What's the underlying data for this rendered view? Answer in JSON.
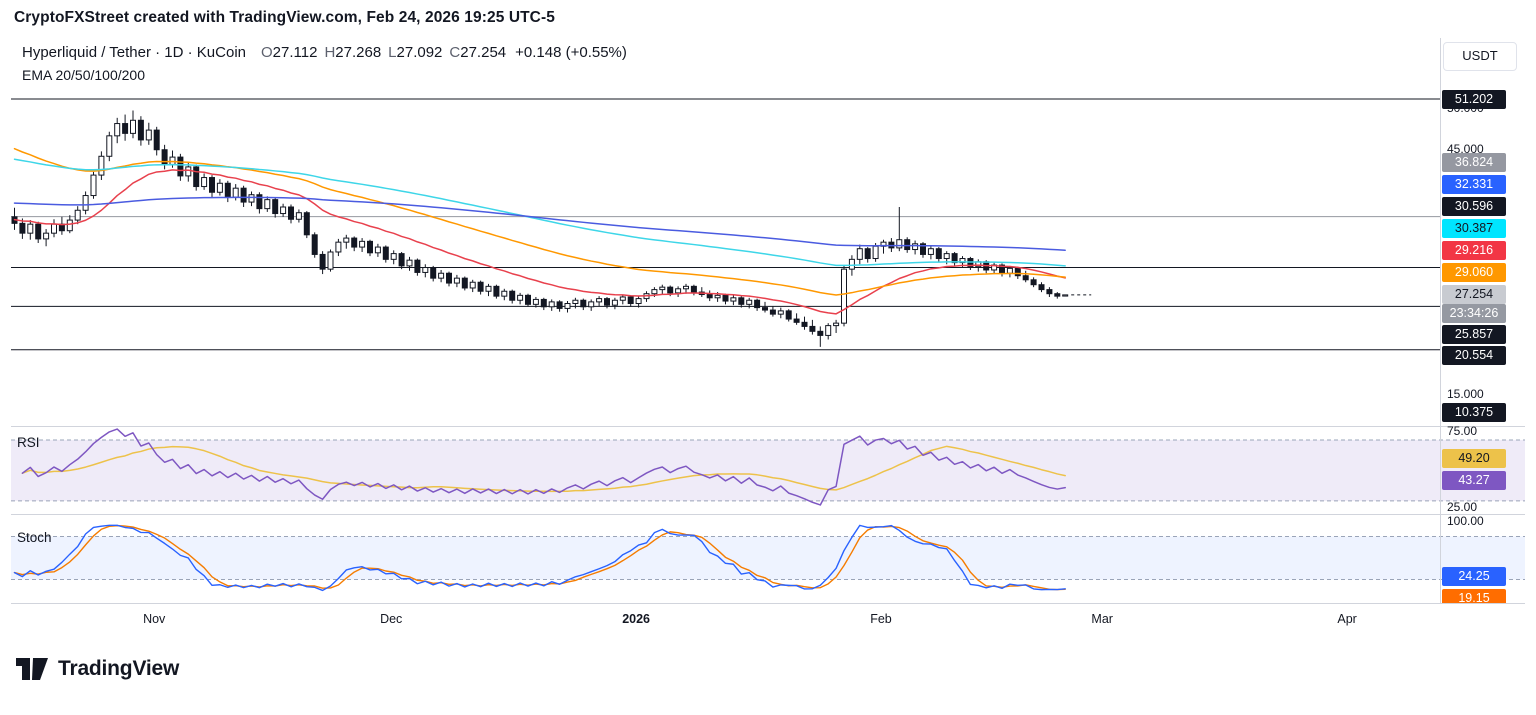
{
  "header": {
    "text": "CryptoFXStreet created with TradingView.com, Feb 24, 2026 19:25 UTC-5"
  },
  "legend": {
    "title": "Hyperliquid / Tether · 1D · KuCoin",
    "ohlc": {
      "o_label": "O",
      "o_value": "27.112",
      "h_label": "H",
      "h_value": "27.268",
      "l_label": "L",
      "l_value": "27.092",
      "c_label": "C",
      "c_value": "27.254",
      "change": "+0.148 (+0.55%)"
    },
    "indicator": "EMA 20/50/100/200"
  },
  "axis": {
    "currency": "USDT",
    "price_ticks": [
      {
        "text": "50.000",
        "value": 50
      },
      {
        "text": "45.000",
        "value": 45
      },
      {
        "text": "15.000",
        "value": 15
      }
    ],
    "price_badges": [
      {
        "text": "51.202",
        "value": 51.202,
        "bg": "#131722",
        "fg": "#ffffff"
      },
      {
        "text": "36.824",
        "value": 36.824,
        "bg": "#9598a1",
        "fg": "#ffffff"
      },
      {
        "text": "32.331",
        "value": 32.331,
        "bg": "#2962ff",
        "fg": "#ffffff"
      },
      {
        "text": "30.596",
        "value": 30.596,
        "bg": "#131722",
        "fg": "#ffffff"
      },
      {
        "text": "30.387",
        "value": 30.387,
        "bg": "#00e5ff",
        "fg": "#131722"
      },
      {
        "text": "29.216",
        "value": 29.216,
        "bg": "#f23645",
        "fg": "#ffffff"
      },
      {
        "text": "29.060",
        "value": 29.06,
        "bg": "#ff9800",
        "fg": "#ffffff"
      },
      {
        "text": "27.254",
        "value": 27.254,
        "bg": "#c8cbd1",
        "fg": "#131722",
        "countdown": "23:34:26",
        "countdown_bg": "#9599a2",
        "countdown_fg": "#ffffff"
      },
      {
        "text": "25.857",
        "value": 25.857,
        "bg": "#131722",
        "fg": "#ffffff"
      },
      {
        "text": "20.554",
        "value": 20.554,
        "bg": "#131722",
        "fg": "#ffffff"
      },
      {
        "text": "10.375",
        "value": 10.375,
        "bg": "#131722",
        "fg": "#ffffff",
        "clamp": "bottom"
      }
    ],
    "rsi_ticks": [
      {
        "text": "75.00",
        "value": 75
      },
      {
        "text": "25.00",
        "value": 25
      }
    ],
    "rsi_badges": [
      {
        "text": "49.20",
        "value": 49.2,
        "bg": "#edc24a",
        "fg": "#131722"
      },
      {
        "text": "43.27",
        "value": 43.27,
        "bg": "#7e57c2",
        "fg": "#ffffff"
      }
    ],
    "stoch_ticks": [
      {
        "text": "100.00",
        "value": 100
      }
    ],
    "stoch_badges": [
      {
        "text": "24.25",
        "value": 24.25,
        "bg": "#2962ff",
        "fg": "#ffffff"
      },
      {
        "text": "19.15",
        "value": 19.15,
        "bg": "#ff6d00",
        "fg": "#ffffff"
      }
    ]
  },
  "chart_data": {
    "type": "candlestick",
    "symbol": "Hyperliquid / Tether",
    "interval": "1D",
    "exchange": "KuCoin",
    "last_bar": {
      "open": 27.112,
      "high": 27.268,
      "low": 27.092,
      "close": 27.254,
      "change": "+0.148",
      "change_pct": "+0.55%"
    },
    "price_line": {
      "value": 27.254,
      "countdown": "23:34:26"
    },
    "ylim_visible": [
      11.5,
      52.6
    ],
    "levels": [
      {
        "value": 51.202,
        "color": "#131722"
      },
      {
        "value": 36.824,
        "color": "#9598a1"
      },
      {
        "value": 30.596,
        "color": "#131722"
      },
      {
        "value": 25.857,
        "color": "#131722"
      },
      {
        "value": 20.554,
        "color": "#131722"
      },
      {
        "value": 10.375,
        "color": "#131722"
      }
    ],
    "emas": [
      {
        "period": 20,
        "color": "#e8414d",
        "seed": 36.5,
        "last": 29.216
      },
      {
        "period": 50,
        "color": "#ff9800",
        "seed": 45.5,
        "last": 29.06
      },
      {
        "period": 100,
        "color": "#3ed6e8",
        "seed": 44.0,
        "last": 30.387
      },
      {
        "period": 200,
        "color": "#4a5be0",
        "seed": 38.5,
        "last": 32.331
      }
    ],
    "rsi": {
      "label": "RSI",
      "period": 14,
      "upper_band": 70,
      "lower_band": 30,
      "line_color": "#7e57c2",
      "ma_color": "#edc24a",
      "last": 43.27,
      "ma_last": 49.2
    },
    "stoch": {
      "label": "Stoch",
      "upper_band": 80,
      "lower_band": 20,
      "k_color": "#2962ff",
      "d_color": "#f57c00",
      "k_last": 24.25,
      "d_last": 19.15
    },
    "time_axis": [
      {
        "text": "Nov",
        "day": 18
      },
      {
        "text": "Dec",
        "day": 48
      },
      {
        "text": "2026",
        "day": 79,
        "bold": true
      },
      {
        "text": "Feb",
        "day": 110
      },
      {
        "text": "Mar",
        "day": 138
      },
      {
        "text": "Apr",
        "day": 169
      }
    ],
    "candles": [
      [
        36.8,
        37.9,
        35.2,
        36.0
      ],
      [
        36.0,
        36.6,
        34.1,
        34.8
      ],
      [
        34.8,
        36.4,
        34.0,
        35.9
      ],
      [
        35.9,
        36.2,
        33.6,
        34.1
      ],
      [
        34.1,
        35.3,
        33.2,
        34.8
      ],
      [
        34.8,
        36.5,
        34.3,
        35.9
      ],
      [
        35.9,
        36.8,
        34.6,
        35.1
      ],
      [
        35.1,
        37.0,
        34.8,
        36.4
      ],
      [
        36.4,
        38.1,
        35.9,
        37.6
      ],
      [
        37.6,
        39.9,
        37.1,
        39.4
      ],
      [
        39.4,
        42.3,
        39.0,
        41.9
      ],
      [
        41.9,
        44.8,
        41.3,
        44.2
      ],
      [
        44.2,
        47.2,
        43.6,
        46.7
      ],
      [
        46.7,
        48.9,
        45.8,
        48.2
      ],
      [
        48.2,
        49.3,
        46.1,
        47.0
      ],
      [
        47.0,
        49.8,
        46.4,
        48.6
      ],
      [
        48.6,
        49.1,
        45.5,
        46.2
      ],
      [
        46.2,
        48.3,
        45.6,
        47.4
      ],
      [
        47.4,
        47.8,
        44.3,
        45.0
      ],
      [
        45.0,
        45.6,
        42.6,
        43.2
      ],
      [
        43.2,
        44.9,
        42.8,
        44.1
      ],
      [
        44.1,
        44.5,
        41.2,
        41.8
      ],
      [
        41.8,
        43.4,
        41.1,
        42.9
      ],
      [
        42.9,
        43.2,
        40.0,
        40.5
      ],
      [
        40.5,
        42.1,
        40.1,
        41.6
      ],
      [
        41.6,
        41.9,
        39.2,
        39.8
      ],
      [
        39.8,
        41.4,
        39.4,
        40.9
      ],
      [
        40.9,
        41.2,
        38.6,
        39.2
      ],
      [
        39.2,
        40.8,
        38.8,
        40.3
      ],
      [
        40.3,
        40.6,
        38.0,
        38.6
      ],
      [
        38.6,
        39.9,
        38.1,
        39.5
      ],
      [
        39.5,
        39.8,
        37.2,
        37.8
      ],
      [
        37.8,
        39.3,
        37.4,
        38.9
      ],
      [
        38.9,
        39.1,
        36.7,
        37.2
      ],
      [
        37.2,
        38.4,
        36.8,
        38.0
      ],
      [
        38.0,
        38.3,
        36.0,
        36.5
      ],
      [
        36.5,
        37.7,
        36.1,
        37.3
      ],
      [
        37.3,
        37.5,
        34.2,
        34.6
      ],
      [
        34.6,
        34.9,
        31.8,
        32.2
      ],
      [
        32.2,
        32.6,
        29.8,
        30.4
      ],
      [
        30.4,
        32.8,
        30.1,
        32.5
      ],
      [
        32.5,
        34.1,
        32.0,
        33.7
      ],
      [
        33.7,
        34.6,
        32.9,
        34.2
      ],
      [
        34.2,
        34.4,
        32.6,
        33.1
      ],
      [
        33.1,
        34.2,
        32.5,
        33.8
      ],
      [
        33.8,
        34.0,
        32.0,
        32.4
      ],
      [
        32.4,
        33.5,
        31.9,
        33.1
      ],
      [
        33.1,
        33.3,
        31.2,
        31.6
      ],
      [
        31.6,
        32.7,
        31.0,
        32.3
      ],
      [
        32.3,
        32.5,
        30.4,
        30.8
      ],
      [
        30.8,
        31.9,
        30.2,
        31.5
      ],
      [
        31.5,
        31.7,
        29.6,
        30.0
      ],
      [
        30.0,
        31.0,
        29.4,
        30.6
      ],
      [
        30.6,
        30.8,
        28.9,
        29.3
      ],
      [
        29.3,
        30.3,
        28.8,
        29.9
      ],
      [
        29.9,
        30.1,
        28.3,
        28.7
      ],
      [
        28.7,
        29.7,
        28.2,
        29.3
      ],
      [
        29.3,
        29.5,
        27.8,
        28.1
      ],
      [
        28.1,
        29.1,
        27.6,
        28.8
      ],
      [
        28.8,
        29.0,
        27.3,
        27.7
      ],
      [
        27.7,
        28.6,
        27.1,
        28.3
      ],
      [
        28.3,
        28.5,
        26.8,
        27.1
      ],
      [
        27.1,
        28.0,
        26.6,
        27.7
      ],
      [
        27.7,
        27.9,
        26.2,
        26.6
      ],
      [
        26.6,
        27.5,
        26.1,
        27.2
      ],
      [
        27.2,
        27.4,
        25.8,
        26.1
      ],
      [
        26.1,
        27.0,
        25.7,
        26.7
      ],
      [
        26.7,
        26.9,
        25.4,
        25.8
      ],
      [
        25.8,
        26.7,
        25.3,
        26.4
      ],
      [
        26.4,
        26.6,
        25.2,
        25.6
      ],
      [
        25.6,
        26.5,
        25.1,
        26.2
      ],
      [
        26.2,
        26.9,
        25.6,
        26.6
      ],
      [
        26.6,
        26.8,
        25.4,
        25.8
      ],
      [
        25.8,
        26.7,
        25.3,
        26.4
      ],
      [
        26.4,
        27.1,
        25.9,
        26.8
      ],
      [
        26.8,
        27.0,
        25.6,
        26.0
      ],
      [
        26.0,
        26.9,
        25.5,
        26.6
      ],
      [
        26.6,
        27.3,
        26.1,
        27.0
      ],
      [
        27.0,
        27.2,
        25.8,
        26.2
      ],
      [
        26.2,
        27.1,
        25.7,
        26.8
      ],
      [
        26.8,
        27.7,
        26.4,
        27.4
      ],
      [
        27.4,
        28.2,
        27.0,
        27.9
      ],
      [
        27.9,
        28.5,
        27.3,
        28.2
      ],
      [
        28.2,
        28.4,
        27.1,
        27.5
      ],
      [
        27.5,
        28.3,
        27.0,
        28.0
      ],
      [
        28.0,
        28.6,
        27.4,
        28.3
      ],
      [
        28.3,
        28.5,
        27.2,
        27.6
      ],
      [
        27.6,
        28.2,
        27.0,
        27.3
      ],
      [
        27.3,
        27.8,
        26.5,
        26.9
      ],
      [
        26.9,
        27.6,
        26.4,
        27.2
      ],
      [
        27.2,
        27.4,
        26.1,
        26.5
      ],
      [
        26.5,
        27.2,
        26.0,
        26.9
      ],
      [
        26.9,
        27.1,
        25.7,
        26.1
      ],
      [
        26.1,
        26.9,
        25.6,
        26.6
      ],
      [
        26.6,
        26.8,
        25.3,
        25.7
      ],
      [
        25.7,
        26.4,
        25.1,
        25.4
      ],
      [
        25.4,
        25.9,
        24.6,
        24.9
      ],
      [
        24.9,
        25.7,
        24.4,
        25.3
      ],
      [
        25.3,
        25.5,
        24.0,
        24.3
      ],
      [
        24.3,
        25.0,
        23.6,
        23.9
      ],
      [
        23.9,
        24.6,
        23.0,
        23.4
      ],
      [
        23.4,
        24.2,
        22.4,
        22.8
      ],
      [
        22.8,
        23.4,
        20.9,
        22.3
      ],
      [
        22.3,
        23.8,
        21.8,
        23.5
      ],
      [
        23.5,
        24.2,
        22.6,
        23.8
      ],
      [
        23.8,
        30.9,
        23.4,
        30.4
      ],
      [
        30.4,
        32.1,
        29.6,
        31.6
      ],
      [
        31.6,
        33.4,
        31.0,
        32.9
      ],
      [
        32.9,
        33.1,
        31.2,
        31.7
      ],
      [
        31.7,
        33.6,
        31.3,
        33.2
      ],
      [
        33.2,
        34.0,
        32.3,
        33.7
      ],
      [
        33.7,
        34.2,
        32.5,
        33.0
      ],
      [
        33.0,
        38.0,
        32.6,
        34.0
      ],
      [
        34.0,
        34.3,
        32.4,
        32.8
      ],
      [
        32.8,
        33.9,
        32.2,
        33.5
      ],
      [
        33.5,
        33.7,
        31.8,
        32.2
      ],
      [
        32.2,
        33.2,
        31.6,
        32.9
      ],
      [
        32.9,
        33.1,
        31.3,
        31.7
      ],
      [
        31.7,
        32.6,
        31.0,
        32.3
      ],
      [
        32.3,
        32.5,
        30.8,
        31.2
      ],
      [
        31.2,
        32.0,
        30.6,
        31.7
      ],
      [
        31.7,
        31.9,
        30.3,
        30.7
      ],
      [
        30.7,
        31.6,
        30.1,
        31.3
      ],
      [
        31.3,
        31.5,
        29.9,
        30.3
      ],
      [
        30.3,
        31.2,
        29.8,
        30.9
      ],
      [
        30.9,
        31.1,
        29.5,
        29.9
      ],
      [
        29.9,
        30.8,
        29.4,
        30.5
      ],
      [
        30.5,
        30.7,
        29.2,
        29.6
      ],
      [
        29.6,
        30.2,
        28.8,
        29.1
      ],
      [
        29.1,
        29.4,
        28.2,
        28.5
      ],
      [
        28.5,
        28.8,
        27.6,
        27.9
      ],
      [
        27.9,
        28.2,
        27.0,
        27.4
      ],
      [
        27.4,
        27.6,
        26.8,
        27.1
      ],
      [
        27.112,
        27.268,
        27.092,
        27.254
      ]
    ]
  },
  "footer": {
    "brand": "TradingView"
  }
}
